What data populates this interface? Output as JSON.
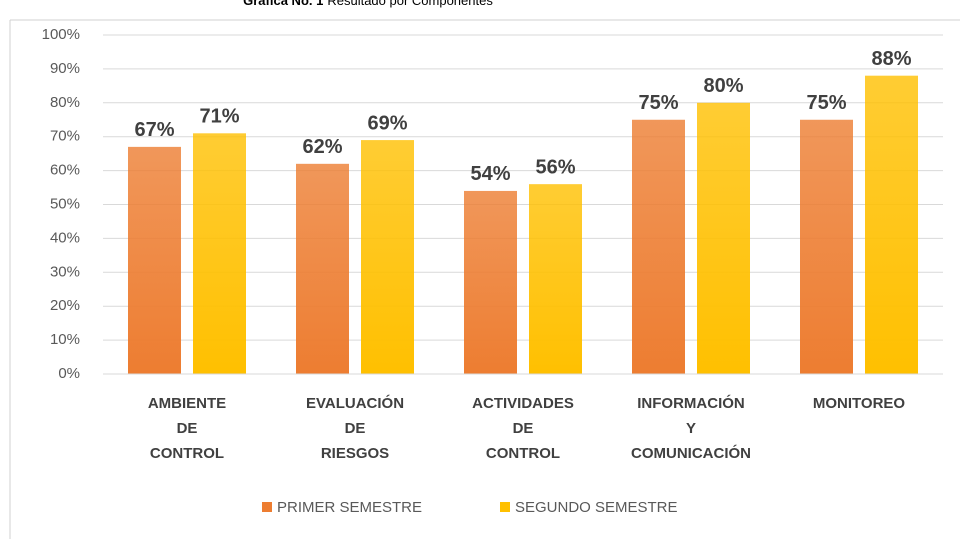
{
  "chart_data": {
    "type": "bar",
    "title_label": "Gráfica No. 1",
    "title": "Resultado por Componentes",
    "categories": [
      "AMBIENTE DE CONTROL",
      "EVALUACIÓN DE RIESGOS",
      "ACTIVIDADES DE CONTROL",
      "INFORMACIÓN Y COMUNICACIÓN",
      "MONITOREO"
    ],
    "series": [
      {
        "name": "PRIMER SEMESTRE",
        "color": "#ed7d31",
        "values": [
          67,
          62,
          54,
          75,
          75
        ],
        "value_labels": [
          "67%",
          "62%",
          "54%",
          "75%",
          "75%"
        ]
      },
      {
        "name": "SEGUNDO SEMESTRE",
        "color": "#ffc000",
        "values": [
          71,
          69,
          56,
          80,
          88
        ],
        "value_labels": [
          "71%",
          "69%",
          "56%",
          "80%",
          "88%"
        ]
      }
    ],
    "ylim": [
      0,
      100
    ],
    "yticks": [
      {
        "value": 0,
        "label": "0%"
      },
      {
        "value": 10,
        "label": "10%"
      },
      {
        "value": 20,
        "label": "20%"
      },
      {
        "value": 30,
        "label": "30%"
      },
      {
        "value": 40,
        "label": "40%"
      },
      {
        "value": 50,
        "label": "50%"
      },
      {
        "value": 60,
        "label": "60%"
      },
      {
        "value": 70,
        "label": "70%"
      },
      {
        "value": 80,
        "label": "80%"
      },
      {
        "value": 90,
        "label": "90%"
      },
      {
        "value": 100,
        "label": "100%"
      }
    ],
    "grid": true,
    "legend": "bottom"
  }
}
